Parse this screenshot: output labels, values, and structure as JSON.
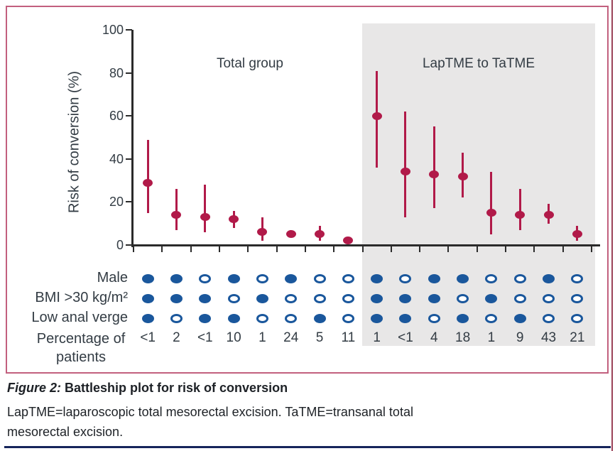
{
  "caption": {
    "figure_label": "Figure 2:",
    "title": "Battleship plot for risk of conversion",
    "abbrev_lines": [
      "LapTME=laparoscopic total mesorectal excision. TaTME=transanal total",
      "mesorectal excision."
    ]
  },
  "colors": {
    "point_red": "#b11a49",
    "circle_blue": "#1a579c",
    "panel_gray": "#e8e7e7",
    "border_pink": "#c2607e",
    "axis_dark": "#2b2b2b",
    "chart_text": "#333c44",
    "rule_navy": "#16245a"
  },
  "chart_data": {
    "type": "scatter",
    "title": "",
    "ylabel": "Risk of conversion (%)",
    "ylim": [
      0,
      100
    ],
    "yticks": [
      0,
      20,
      40,
      60,
      80,
      100
    ],
    "row_labels": [
      "Male",
      "BMI >30 kg/m²",
      "Low anal verge",
      "Percentage of patients"
    ],
    "legend": "filled circle = characteristic present, open circle = absent",
    "groups": [
      {
        "label": "Total group",
        "background": "white",
        "points": [
          {
            "est": 29,
            "lo": 15,
            "hi": 49,
            "male": true,
            "bmi": true,
            "low_anal_verge": true,
            "pct": "<1"
          },
          {
            "est": 14,
            "lo": 7,
            "hi": 26,
            "male": true,
            "bmi": true,
            "low_anal_verge": false,
            "pct": "2"
          },
          {
            "est": 13,
            "lo": 6,
            "hi": 28,
            "male": false,
            "bmi": true,
            "low_anal_verge": true,
            "pct": "<1"
          },
          {
            "est": 12,
            "lo": 8,
            "hi": 16,
            "male": true,
            "bmi": false,
            "low_anal_verge": true,
            "pct": "10"
          },
          {
            "est": 6,
            "lo": 2,
            "hi": 13,
            "male": false,
            "bmi": true,
            "low_anal_verge": false,
            "pct": "1"
          },
          {
            "est": 5,
            "lo": 4,
            "hi": 7,
            "male": true,
            "bmi": false,
            "low_anal_verge": false,
            "pct": "24"
          },
          {
            "est": 5,
            "lo": 2,
            "hi": 9,
            "male": false,
            "bmi": false,
            "low_anal_verge": true,
            "pct": "5"
          },
          {
            "est": 2,
            "lo": 1,
            "hi": 3,
            "male": false,
            "bmi": false,
            "low_anal_verge": false,
            "pct": "11"
          }
        ]
      },
      {
        "label": "LapTME to TaTME",
        "background": "#e8e7e7",
        "points": [
          {
            "est": 60,
            "lo": 36,
            "hi": 81,
            "male": true,
            "bmi": true,
            "low_anal_verge": true,
            "pct": "1"
          },
          {
            "est": 34,
            "lo": 13,
            "hi": 62,
            "male": false,
            "bmi": true,
            "low_anal_verge": true,
            "pct": "<1"
          },
          {
            "est": 33,
            "lo": 17,
            "hi": 55,
            "male": true,
            "bmi": true,
            "low_anal_verge": false,
            "pct": "4"
          },
          {
            "est": 32,
            "lo": 22,
            "hi": 43,
            "male": true,
            "bmi": false,
            "low_anal_verge": true,
            "pct": "18"
          },
          {
            "est": 15,
            "lo": 5,
            "hi": 34,
            "male": false,
            "bmi": true,
            "low_anal_verge": false,
            "pct": "1"
          },
          {
            "est": 14,
            "lo": 7,
            "hi": 26,
            "male": false,
            "bmi": false,
            "low_anal_verge": true,
            "pct": "9"
          },
          {
            "est": 14,
            "lo": 10,
            "hi": 19,
            "male": true,
            "bmi": false,
            "low_anal_verge": false,
            "pct": "43"
          },
          {
            "est": 5,
            "lo": 2,
            "hi": 9,
            "male": false,
            "bmi": false,
            "low_anal_verge": false,
            "pct": "21"
          }
        ]
      }
    ]
  }
}
